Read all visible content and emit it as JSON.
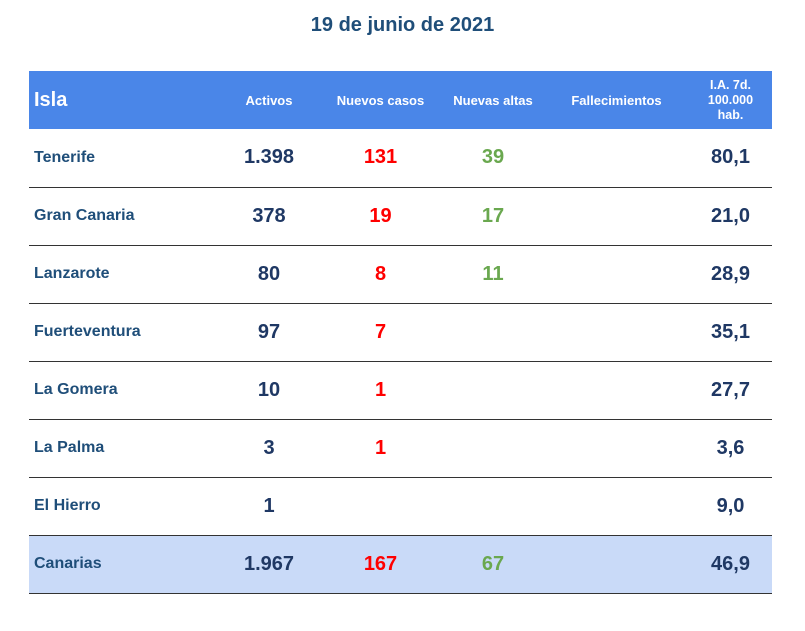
{
  "title": "19 de junio de 2021",
  "headers": {
    "isla": "Isla",
    "activos": "Activos",
    "nuevos_casos": "Nuevos casos",
    "nuevas_altas": "Nuevas altas",
    "fallecimientos": "Fallecimientos",
    "ia_line1": "I.A. 7d.",
    "ia_line2": "100.000",
    "ia_line3": "hab."
  },
  "rows": [
    {
      "isla": "Tenerife",
      "activos": "1.398",
      "nuevos_casos": "131",
      "nuevas_altas": "39",
      "fallecimientos": "",
      "ia": "80,1"
    },
    {
      "isla": "Gran Canaria",
      "activos": "378",
      "nuevos_casos": "19",
      "nuevas_altas": "17",
      "fallecimientos": "",
      "ia": "21,0"
    },
    {
      "isla": "Lanzarote",
      "activos": "80",
      "nuevos_casos": "8",
      "nuevas_altas": "11",
      "fallecimientos": "",
      "ia": "28,9"
    },
    {
      "isla": "Fuerteventura",
      "activos": "97",
      "nuevos_casos": "7",
      "nuevas_altas": "",
      "fallecimientos": "",
      "ia": "35,1"
    },
    {
      "isla": "La Gomera",
      "activos": "10",
      "nuevos_casos": "1",
      "nuevas_altas": "",
      "fallecimientos": "",
      "ia": "27,7"
    },
    {
      "isla": "La Palma",
      "activos": "3",
      "nuevos_casos": "1",
      "nuevas_altas": "",
      "fallecimientos": "",
      "ia": "3,6"
    },
    {
      "isla": "El Hierro",
      "activos": "1",
      "nuevos_casos": "",
      "nuevas_altas": "",
      "fallecimientos": "",
      "ia": "9,0"
    }
  ],
  "total": {
    "isla": "Canarias",
    "activos": "1.967",
    "nuevos_casos": "167",
    "nuevas_altas": "67",
    "fallecimientos": "",
    "ia": "46,9"
  },
  "colors": {
    "header_bg": "#4a86e8",
    "total_bg": "#c9daf8",
    "title": "#1f4e79",
    "nuevos_casos": "#ff0000",
    "nuevas_altas": "#6aa84f"
  }
}
